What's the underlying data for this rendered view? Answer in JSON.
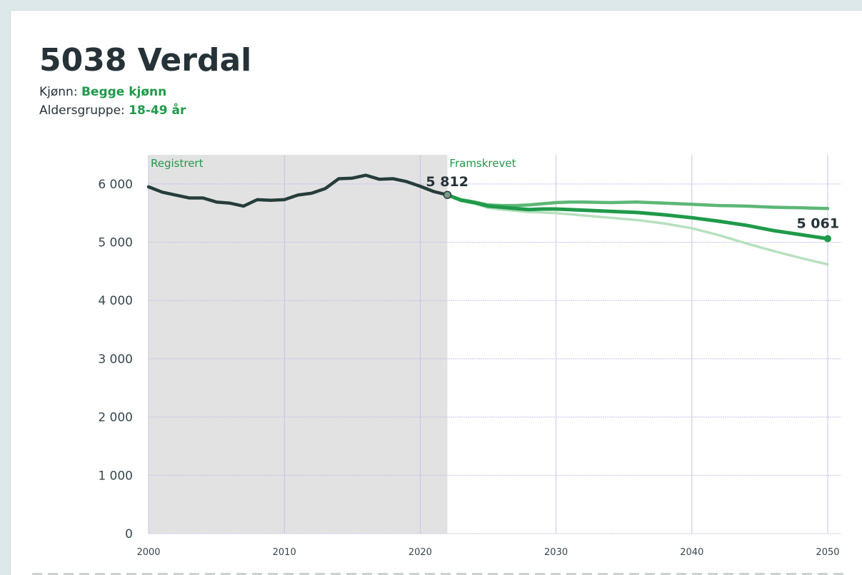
{
  "header": {
    "title": "5038 Verdal",
    "gender_label": "Kjønn:",
    "gender_value": "Begge kjønn",
    "age_label": "Aldersgruppe:",
    "age_value": "18-49 år"
  },
  "colors": {
    "registered": "#263d3a",
    "main": "#1f9a4a",
    "high": "#5cb776",
    "low": "#b7e0bf",
    "shade": "#e2e2e2",
    "grid": "#c5c3ea",
    "label_green": "#1f9a4a"
  },
  "chart_data": {
    "type": "line",
    "title": "5038 Verdal",
    "xlabel": "",
    "ylabel": "",
    "xlim": [
      2000,
      2051
    ],
    "ylim": [
      0,
      6500
    ],
    "x_ticks": [
      2000,
      2010,
      2020,
      2030,
      2040,
      2050
    ],
    "x_tick_labels": [
      "2000",
      "2010",
      "2020",
      "2030",
      "2040",
      "2050"
    ],
    "y_ticks": [
      0,
      1000,
      2000,
      3000,
      4000,
      5000,
      6000
    ],
    "y_tick_labels": [
      "0",
      "1 000",
      "2 000",
      "3 000",
      "4 000",
      "5 000",
      "6 000"
    ],
    "grid": true,
    "regions": [
      {
        "label": "Registrert",
        "from": 2000,
        "to": 2022,
        "shaded": true
      },
      {
        "label": "Framskrevet",
        "from": 2022,
        "to": 2051,
        "shaded": false
      }
    ],
    "series": [
      {
        "key": "registered",
        "x": [
          2000,
          2001,
          2002,
          2003,
          2004,
          2005,
          2006,
          2007,
          2008,
          2009,
          2010,
          2011,
          2012,
          2013,
          2014,
          2015,
          2016,
          2017,
          2018,
          2019,
          2020,
          2021,
          2022
        ],
        "y": [
          5950,
          5860,
          5810,
          5760,
          5760,
          5690,
          5670,
          5620,
          5730,
          5720,
          5730,
          5810,
          5840,
          5920,
          6090,
          6100,
          6150,
          6080,
          6090,
          6040,
          5960,
          5870,
          5812
        ]
      },
      {
        "key": "high",
        "x": [
          2022,
          2023,
          2024,
          2025,
          2026,
          2027,
          2028,
          2029,
          2030,
          2031,
          2032,
          2034,
          2036,
          2038,
          2040,
          2042,
          2044,
          2046,
          2048,
          2050
        ],
        "y": [
          5812,
          5730,
          5690,
          5640,
          5630,
          5630,
          5640,
          5660,
          5680,
          5690,
          5690,
          5680,
          5690,
          5670,
          5650,
          5630,
          5620,
          5600,
          5590,
          5580
        ]
      },
      {
        "key": "main",
        "x": [
          2022,
          2023,
          2024,
          2025,
          2026,
          2027,
          2028,
          2029,
          2030,
          2031,
          2032,
          2034,
          2036,
          2038,
          2040,
          2042,
          2044,
          2046,
          2048,
          2050
        ],
        "y": [
          5812,
          5720,
          5680,
          5620,
          5600,
          5580,
          5560,
          5570,
          5570,
          5560,
          5550,
          5530,
          5510,
          5470,
          5420,
          5360,
          5290,
          5200,
          5130,
          5061
        ]
      },
      {
        "key": "low",
        "x": [
          2022,
          2023,
          2024,
          2025,
          2026,
          2027,
          2028,
          2029,
          2030,
          2031,
          2032,
          2034,
          2036,
          2038,
          2040,
          2042,
          2044,
          2046,
          2048,
          2050
        ],
        "y": [
          5812,
          5710,
          5660,
          5590,
          5560,
          5540,
          5520,
          5510,
          5500,
          5480,
          5460,
          5420,
          5380,
          5320,
          5240,
          5120,
          4980,
          4850,
          4730,
          4620
        ]
      }
    ],
    "annotations": [
      {
        "text": "5 812",
        "x": 2022,
        "y": 5812
      },
      {
        "text": "5 061",
        "x": 2050,
        "y": 5061
      }
    ]
  }
}
